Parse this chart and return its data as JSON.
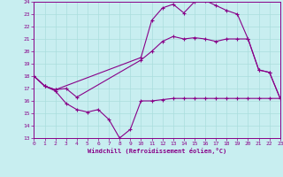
{
  "xlabel": "Windchill (Refroidissement éolien,°C)",
  "xlim": [
    0,
    23
  ],
  "ylim": [
    13,
    24
  ],
  "yticks": [
    13,
    14,
    15,
    16,
    17,
    18,
    19,
    20,
    21,
    22,
    23,
    24
  ],
  "xticks": [
    0,
    1,
    2,
    3,
    4,
    5,
    6,
    7,
    8,
    9,
    10,
    11,
    12,
    13,
    14,
    15,
    16,
    17,
    18,
    19,
    20,
    21,
    22,
    23
  ],
  "bg_color": "#c8eef0",
  "line_color": "#880088",
  "grid_color": "#aadddd",
  "line1_x": [
    0,
    1,
    2,
    3,
    4,
    5,
    6,
    7,
    8,
    9,
    10,
    11,
    12,
    13,
    14,
    15,
    16,
    17,
    18,
    19,
    20,
    21,
    22,
    23
  ],
  "line1_y": [
    18.0,
    17.2,
    16.8,
    15.8,
    15.3,
    15.1,
    15.3,
    14.5,
    13.0,
    13.7,
    16.0,
    16.0,
    16.1,
    16.2,
    16.2,
    16.2,
    16.2,
    16.2,
    16.2,
    16.2,
    16.2,
    16.2,
    16.2,
    16.2
  ],
  "line2_x": [
    0,
    1,
    2,
    3,
    4,
    10,
    11,
    12,
    13,
    14,
    15,
    16,
    17,
    18,
    19,
    20,
    21,
    22,
    23
  ],
  "line2_y": [
    18.0,
    17.2,
    16.9,
    17.0,
    16.3,
    19.3,
    20.0,
    20.8,
    21.2,
    21.0,
    21.1,
    21.0,
    20.8,
    21.0,
    21.0,
    21.0,
    18.5,
    18.3,
    16.2
  ],
  "line3_x": [
    0,
    1,
    2,
    10,
    11,
    12,
    13,
    14,
    15,
    16,
    17,
    18,
    19,
    20,
    21,
    22,
    23
  ],
  "line3_y": [
    18.0,
    17.2,
    16.9,
    19.5,
    22.5,
    23.5,
    23.8,
    23.1,
    24.0,
    24.1,
    23.7,
    23.3,
    23.0,
    21.0,
    18.5,
    18.3,
    16.2
  ]
}
